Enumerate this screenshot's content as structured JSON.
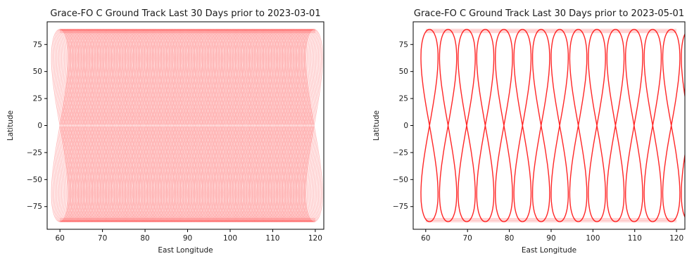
{
  "chart_data": [
    {
      "type": "line",
      "title": "Grace-FO C Ground Track Last 30 Days prior to 2023-03-01",
      "xlabel": "East Longitude",
      "ylabel": "Latitude",
      "xlim": [
        57,
        122
      ],
      "ylim": [
        -96,
        96
      ],
      "xticks": [
        "60",
        "70",
        "80",
        "90",
        "100",
        "110",
        "120"
      ],
      "yticks": [
        "75",
        "50",
        "25",
        "0",
        "−25",
        "−50",
        "−75"
      ],
      "ytick_values": [
        75,
        50,
        25,
        0,
        -25,
        -50,
        -75
      ],
      "xtick_values": [
        60,
        70,
        80,
        90,
        100,
        110,
        120
      ],
      "grid": false,
      "series": [
        {
          "color": "#ff0000",
          "opacity": 0.3,
          "max_latitude": 89,
          "lon_range": [
            60,
            120
          ],
          "loop_width_deg": 4.0,
          "loop_spacing_deg": 0.3,
          "loop_count": 200
        }
      ]
    },
    {
      "type": "line",
      "title": "Grace-FO C Ground Track Last 30 Days prior to 2023-05-01",
      "xlabel": "East Longitude",
      "ylabel": "Latitude",
      "xlim": [
        57,
        122
      ],
      "ylim": [
        -96,
        96
      ],
      "xticks": [
        "60",
        "70",
        "80",
        "90",
        "100",
        "110",
        "120"
      ],
      "yticks": [
        "75",
        "50",
        "25",
        "0",
        "−25",
        "−50",
        "−75"
      ],
      "ytick_values": [
        75,
        50,
        25,
        0,
        -25,
        -50,
        -75
      ],
      "xtick_values": [
        60,
        70,
        80,
        90,
        100,
        110,
        120
      ],
      "grid": false,
      "series": [
        {
          "color": "#ff0000",
          "opacity": 0.85,
          "max_latitude": 89,
          "lon_range": [
            60,
            120
          ],
          "loop_width_deg": 4.1,
          "loop_spacing_deg": 4.45,
          "loop_count": 15
        }
      ]
    }
  ]
}
